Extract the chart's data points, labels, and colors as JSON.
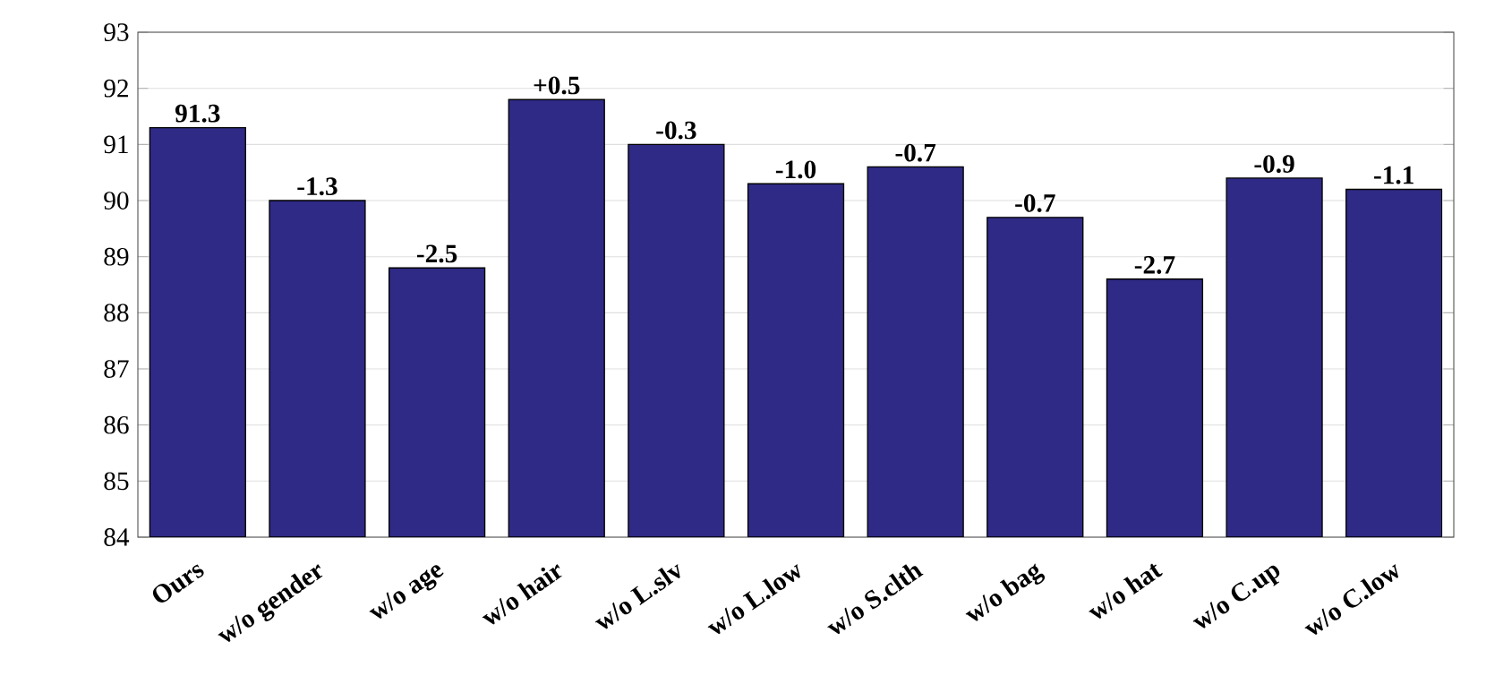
{
  "chart_data": {
    "type": "bar",
    "categories": [
      "Ours",
      "w/o gender",
      "w/o age",
      "w/o hair",
      "w/o L.slv",
      "w/o L.low",
      "w/o S.clth",
      "w/o bag",
      "w/o hat",
      "w/o C.up",
      "w/o C.low"
    ],
    "values": [
      91.3,
      90.0,
      88.8,
      91.8,
      91.0,
      90.3,
      90.6,
      89.7,
      88.6,
      90.4,
      90.2
    ],
    "annotations": [
      {
        "text": "91.3",
        "x": "Ours",
        "y": 91.3
      },
      {
        "text": "-1.3",
        "x": "w/o gender",
        "y": 90.0
      },
      {
        "text": "-2.5",
        "x": "w/o age",
        "y": 88.8
      },
      {
        "text": "+0.5",
        "x": "w/o hair",
        "y": 91.8
      },
      {
        "text": "-0.3",
        "x": "w/o L.slv",
        "y": 91.0
      },
      {
        "text": "-1.0",
        "x": "w/o L.low",
        "y": 90.3
      },
      {
        "text": "-0.7",
        "x": "w/o S.clth",
        "y": 90.6
      },
      {
        "text": "-0.7",
        "x": "w/o bag",
        "y": 89.7
      },
      {
        "text": "-2.7",
        "x": "w/o hat",
        "y": 88.6
      },
      {
        "text": "-0.9",
        "x": "w/o C.up",
        "y": 90.4
      },
      {
        "text": "-1.1",
        "x": "w/o C.low",
        "y": 90.2
      }
    ],
    "color": "#2f2a85",
    "ylim": [
      84,
      93
    ],
    "yticks": [
      84,
      85,
      86,
      87,
      88,
      89,
      90,
      91,
      92,
      93
    ],
    "grid": "y"
  }
}
